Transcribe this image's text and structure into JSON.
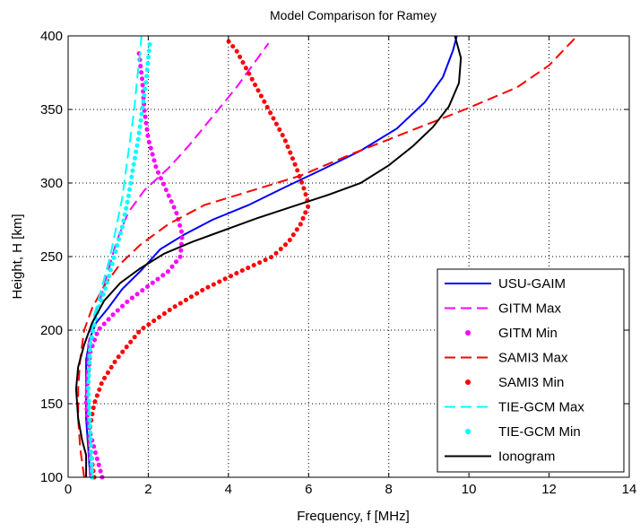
{
  "chart_data": {
    "type": "line",
    "title": "Model Comparison for Ramey",
    "xlabel": "Frequency, f [MHz]",
    "ylabel": "Height, H [km]",
    "xlim": [
      0,
      14
    ],
    "ylim": [
      100,
      400
    ],
    "x_ticks": [
      "0",
      "2",
      "4",
      "6",
      "8",
      "10",
      "12",
      "14"
    ],
    "y_ticks": [
      "100",
      "150",
      "200",
      "250",
      "300",
      "350",
      "400"
    ],
    "grid": true,
    "legend_position": "bottom-right",
    "series": [
      {
        "name": "USU-GAIM",
        "color": "#0000ff",
        "style": "solid",
        "points": [
          [
            0.55,
            100
          ],
          [
            0.5,
            120
          ],
          [
            0.45,
            140
          ],
          [
            0.45,
            160
          ],
          [
            0.45,
            180
          ],
          [
            0.55,
            195
          ],
          [
            0.7,
            205
          ],
          [
            1.0,
            215
          ],
          [
            1.35,
            228
          ],
          [
            1.8,
            240
          ],
          [
            2.3,
            255
          ],
          [
            2.9,
            265
          ],
          [
            3.6,
            275
          ],
          [
            4.5,
            285
          ],
          [
            5.4,
            297
          ],
          [
            6.4,
            310
          ],
          [
            7.3,
            322
          ],
          [
            8.2,
            337
          ],
          [
            8.9,
            355
          ],
          [
            9.35,
            372
          ],
          [
            9.6,
            390
          ],
          [
            9.7,
            400
          ]
        ]
      },
      {
        "name": "GITM Max",
        "color": "#ff00ff",
        "style": "dashed",
        "points": [
          [
            0.55,
            100
          ],
          [
            0.5,
            130
          ],
          [
            0.45,
            160
          ],
          [
            0.5,
            190
          ],
          [
            0.65,
            210
          ],
          [
            0.85,
            225
          ],
          [
            1.0,
            240
          ],
          [
            1.2,
            260
          ],
          [
            1.5,
            280
          ],
          [
            1.9,
            295
          ],
          [
            2.5,
            310
          ],
          [
            3.0,
            325
          ],
          [
            3.6,
            345
          ],
          [
            4.2,
            365
          ],
          [
            4.6,
            380
          ],
          [
            5.0,
            395
          ]
        ]
      },
      {
        "name": "GITM Min",
        "color": "#ff00ff",
        "style": "dotted",
        "points": [
          [
            0.85,
            100
          ],
          [
            0.7,
            115
          ],
          [
            0.55,
            130
          ],
          [
            0.45,
            150
          ],
          [
            0.5,
            170
          ],
          [
            0.55,
            185
          ],
          [
            0.75,
            200
          ],
          [
            1.1,
            210
          ],
          [
            1.5,
            220
          ],
          [
            2.0,
            230
          ],
          [
            2.5,
            240
          ],
          [
            2.8,
            250
          ],
          [
            2.85,
            265
          ],
          [
            2.7,
            280
          ],
          [
            2.45,
            295
          ],
          [
            2.2,
            310
          ],
          [
            2.0,
            330
          ],
          [
            1.9,
            350
          ],
          [
            1.85,
            370
          ],
          [
            1.75,
            392
          ]
        ]
      },
      {
        "name": "SAMI3 Max",
        "color": "#ff0000",
        "style": "dashed",
        "points": [
          [
            0.4,
            100
          ],
          [
            0.3,
            120
          ],
          [
            0.25,
            140
          ],
          [
            0.25,
            160
          ],
          [
            0.3,
            180
          ],
          [
            0.4,
            200
          ],
          [
            0.6,
            215
          ],
          [
            0.9,
            230
          ],
          [
            1.3,
            245
          ],
          [
            1.8,
            258
          ],
          [
            2.5,
            272
          ],
          [
            3.4,
            285
          ],
          [
            4.6,
            295
          ],
          [
            5.8,
            305
          ],
          [
            7.1,
            320
          ],
          [
            8.5,
            335
          ],
          [
            9.9,
            350
          ],
          [
            11.2,
            365
          ],
          [
            12.0,
            380
          ],
          [
            12.7,
            400
          ]
        ]
      },
      {
        "name": "SAMI3 Min",
        "color": "#ff0000",
        "style": "dotted",
        "points": [
          [
            0.65,
            100
          ],
          [
            0.55,
            120
          ],
          [
            0.55,
            135
          ],
          [
            0.65,
            150
          ],
          [
            0.85,
            165
          ],
          [
            1.2,
            180
          ],
          [
            1.8,
            200
          ],
          [
            2.6,
            215
          ],
          [
            3.4,
            228
          ],
          [
            4.3,
            240
          ],
          [
            5.1,
            250
          ],
          [
            5.5,
            260
          ],
          [
            5.8,
            272
          ],
          [
            6.0,
            285
          ],
          [
            5.9,
            295
          ],
          [
            5.7,
            310
          ],
          [
            5.4,
            330
          ],
          [
            5.0,
            350
          ],
          [
            4.6,
            370
          ],
          [
            4.2,
            390
          ],
          [
            3.95,
            398
          ]
        ]
      },
      {
        "name": "TIE-GCM Max",
        "color": "#00ffff",
        "style": "dashed",
        "points": [
          [
            0.6,
            100
          ],
          [
            0.55,
            130
          ],
          [
            0.5,
            160
          ],
          [
            0.55,
            190
          ],
          [
            0.65,
            210
          ],
          [
            0.85,
            230
          ],
          [
            1.05,
            250
          ],
          [
            1.2,
            270
          ],
          [
            1.35,
            290
          ],
          [
            1.45,
            310
          ],
          [
            1.55,
            330
          ],
          [
            1.65,
            350
          ],
          [
            1.72,
            370
          ],
          [
            1.8,
            390
          ],
          [
            1.83,
            400
          ]
        ]
      },
      {
        "name": "TIE-GCM Min",
        "color": "#00ffff",
        "style": "dotted",
        "points": [
          [
            0.6,
            100
          ],
          [
            0.55,
            130
          ],
          [
            0.5,
            160
          ],
          [
            0.55,
            190
          ],
          [
            0.7,
            210
          ],
          [
            0.95,
            230
          ],
          [
            1.15,
            250
          ],
          [
            1.35,
            270
          ],
          [
            1.5,
            290
          ],
          [
            1.62,
            310
          ],
          [
            1.75,
            330
          ],
          [
            1.85,
            350
          ],
          [
            1.95,
            370
          ],
          [
            2.02,
            390
          ],
          [
            2.05,
            398
          ]
        ]
      },
      {
        "name": "Ionogram",
        "color": "#000000",
        "style": "solid",
        "points": [
          [
            0.45,
            100
          ],
          [
            0.45,
            115
          ],
          [
            0.35,
            125
          ],
          [
            0.25,
            140
          ],
          [
            0.2,
            160
          ],
          [
            0.25,
            175
          ],
          [
            0.4,
            190
          ],
          [
            0.6,
            205
          ],
          [
            0.9,
            220
          ],
          [
            1.3,
            232
          ],
          [
            1.8,
            242
          ],
          [
            2.4,
            252
          ],
          [
            3.1,
            260
          ],
          [
            3.9,
            268
          ],
          [
            4.7,
            276
          ],
          [
            5.6,
            284
          ],
          [
            6.5,
            292
          ],
          [
            7.3,
            300
          ],
          [
            8.0,
            312
          ],
          [
            8.6,
            325
          ],
          [
            9.1,
            338
          ],
          [
            9.5,
            352
          ],
          [
            9.75,
            368
          ],
          [
            9.8,
            385
          ],
          [
            9.65,
            400
          ]
        ]
      }
    ]
  }
}
